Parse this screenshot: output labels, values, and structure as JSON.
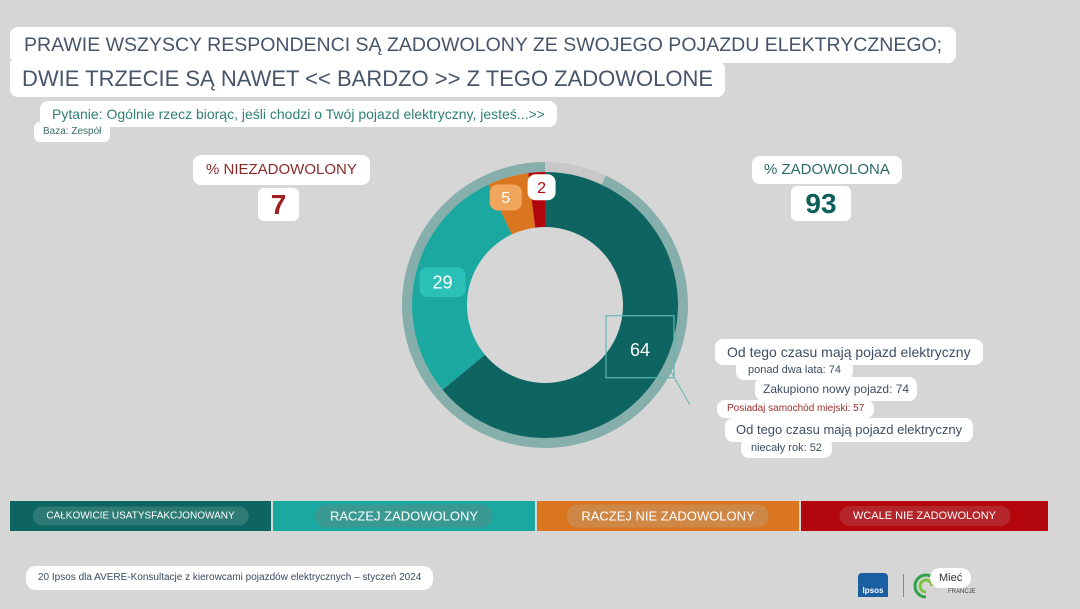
{
  "title": {
    "line1": "PRAWIE WSZYSCY RESPONDENCI SĄ ZADOWOLONY ZE SWOJEGO POJAZDU ELEKTRYCZNEGO;",
    "line2": "DWIE TRZECIE SĄ NAWET << BARDZO >> Z TEGO ZADOWOLONE"
  },
  "question": "Pytanie: Ogólnie rzecz biorąc, jeśli chodzi o Twój pojazd elektryczny, jesteś...>>",
  "base": "Baza: Zespół",
  "summary": {
    "unsatisfied_label": "% NIEZADOWOLONY",
    "unsatisfied_value": "7",
    "satisfied_label": "% ZADOWOLONA",
    "satisfied_value": "93"
  },
  "chart_data": {
    "type": "pie",
    "variant": "donut",
    "segments": [
      {
        "label": "CAŁKOWICIE USATYSFAKCJONOWANY",
        "value": 64,
        "color": "#0d6460"
      },
      {
        "label": "RACZEJ ZADOWOLONY",
        "value": 29,
        "color": "#1aa8a1"
      },
      {
        "label": "RACZEJ NIE ZADOWOLONY",
        "value": 5,
        "color": "#d9761f"
      },
      {
        "label": "WCALE NIE ZADOWOLONY",
        "value": 2,
        "color": "#b3060d"
      }
    ],
    "outer_ring": {
      "satisfied_color": "#86aeaa",
      "unsatisfied_color": "#c8c8c8"
    },
    "legend_position": "bottom"
  },
  "callouts": [
    "Od tego czasu mają pojazd elektryczny",
    "ponad dwa lata: 74",
    "Zakupiono nowy pojazd: 74",
    "Posiadaj samochód miejski: 57",
    "Od tego czasu mają pojazd elektryczny",
    "niecały rok: 52"
  ],
  "legend": [
    "CAŁKOWICIE USATYSFAKCJONOWANY",
    "RACZEJ ZADOWOLONY",
    "RACZEJ NIE ZADOWOLONY",
    "WCALE NIE ZADOWOLONY"
  ],
  "footer": "20 Ipsos dla AVERE-Konsultacje z kierowcami pojazdów elektrycznych – styczeń 2024",
  "logos": {
    "ipsos": "Ipsos",
    "brand": "Mieć",
    "brand_sub": "FRANCJE",
    "brand_icon": "avere-leaf-icon"
  }
}
